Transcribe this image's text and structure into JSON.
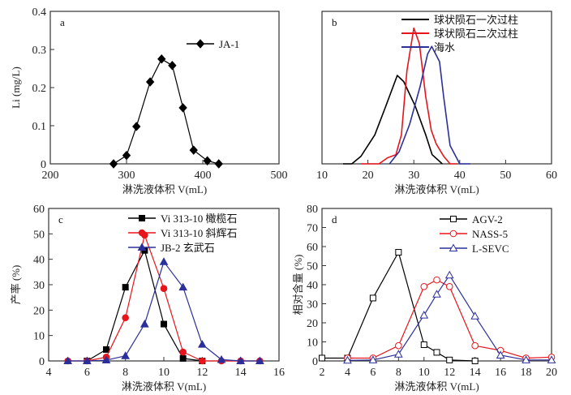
{
  "chart_data": [
    {
      "id": "a",
      "panel_label": "a",
      "type": "line",
      "xlabel": "淋洗液体积 V(mL)",
      "ylabel": "Li (mg/L)",
      "xlim": [
        200,
        500
      ],
      "ylim": [
        0,
        0.4
      ],
      "xticks": [
        200,
        300,
        400,
        500
      ],
      "yticks": [
        0,
        0.1,
        0.2,
        0.3,
        0.4
      ],
      "ytick_labels": [
        "0",
        "0.1",
        "0.2",
        "0.3",
        "0.4"
      ],
      "legend_position": "top-right",
      "series": [
        {
          "name": "JA-1",
          "color": "#000000",
          "marker": "diamond",
          "x": [
            283,
            300,
            313,
            331,
            346,
            360,
            374,
            388,
            406,
            421
          ],
          "y": [
            0,
            0.022,
            0.098,
            0.215,
            0.275,
            0.258,
            0.147,
            0.036,
            0.008,
            0
          ]
        }
      ]
    },
    {
      "id": "b",
      "panel_label": "b",
      "type": "line",
      "xlabel": "淋洗液体积 V(mL)",
      "ylabel": "",
      "xlim": [
        10,
        60
      ],
      "ylim": [
        0,
        1
      ],
      "xticks": [
        10,
        20,
        30,
        40,
        50,
        60
      ],
      "yticks": [],
      "legend_position": "top-right",
      "series": [
        {
          "name": "球状陨石一次过柱",
          "color": "#000000",
          "marker": "none",
          "x": [
            14.6,
            16.5,
            18.5,
            21.5,
            23.8,
            26.4,
            27.8,
            30.3,
            32.6,
            34.0,
            36.2
          ],
          "y": [
            0,
            0,
            0.05,
            0.19,
            0.37,
            0.58,
            0.54,
            0.38,
            0.19,
            0.06,
            0
          ]
        },
        {
          "name": "球状陨石二次过柱",
          "color": "#e8141c",
          "marker": "none",
          "x": [
            18.5,
            22.4,
            24.3,
            26.1,
            27.3,
            28.5,
            30.0,
            31.2,
            32.6,
            33.8,
            34.9,
            36.5,
            37.9,
            39.5
          ],
          "y": [
            0,
            0,
            0.04,
            0.06,
            0.19,
            0.61,
            0.89,
            0.79,
            0.44,
            0.22,
            0.13,
            0.05,
            0,
            0
          ]
        },
        {
          "name": "海水",
          "color": "#2b2f9a",
          "marker": "none",
          "x": [
            24.7,
            26.8,
            29.1,
            31.4,
            33.0,
            33.9,
            35.6,
            36.5,
            37.9,
            40.0,
            42.3
          ],
          "y": [
            0,
            0.08,
            0.26,
            0.51,
            0.72,
            0.77,
            0.67,
            0.44,
            0.12,
            0,
            0
          ]
        }
      ]
    },
    {
      "id": "c",
      "panel_label": "c",
      "type": "line",
      "xlabel": "淋洗液体积 V(mL)",
      "ylabel": "产率 (%)",
      "xlim": [
        4,
        16
      ],
      "ylim": [
        0,
        60
      ],
      "xticks": [
        4,
        6,
        8,
        10,
        12,
        14,
        16
      ],
      "yticks": [
        0,
        10,
        20,
        30,
        40,
        50,
        60
      ],
      "legend_position": "top-right",
      "series": [
        {
          "name": "Vi 313-10 橄榄石",
          "color": "#000000",
          "marker": "square-filled",
          "x": [
            6,
            7,
            8,
            9,
            10,
            11,
            12
          ],
          "y": [
            0,
            4.5,
            29,
            43.5,
            14.5,
            1,
            0
          ]
        },
        {
          "name": "Vi 313-10 斜辉石",
          "color": "#e8141c",
          "marker": "circle-filled",
          "x": [
            5,
            6,
            7,
            8,
            9,
            10,
            11,
            12,
            13,
            14,
            15
          ],
          "y": [
            0,
            0,
            1.5,
            17,
            49.5,
            28.5,
            3.5,
            0,
            0,
            0,
            0
          ]
        },
        {
          "name": "JB-2 玄武石",
          "color": "#2b2f9a",
          "marker": "triangle-filled",
          "x": [
            5,
            6,
            7,
            8,
            9,
            10,
            11,
            12,
            13,
            14,
            15
          ],
          "y": [
            0,
            0,
            0.3,
            2,
            14.5,
            39,
            29,
            6.5,
            0.5,
            0,
            0
          ]
        }
      ]
    },
    {
      "id": "d",
      "panel_label": "d",
      "type": "line",
      "xlabel": "淋洗液体积 V(mL)",
      "ylabel": "相对含量 (%)",
      "xlim": [
        2,
        20
      ],
      "ylim": [
        0,
        80
      ],
      "xticks": [
        2,
        4,
        6,
        8,
        10,
        12,
        14,
        16,
        18,
        20
      ],
      "yticks": [
        0,
        10,
        20,
        30,
        40,
        50,
        60,
        70,
        80
      ],
      "legend_position": "top-right",
      "series": [
        {
          "name": "AGV-2",
          "color": "#000000",
          "marker": "square-open",
          "x": [
            2,
            4,
            6,
            8,
            10,
            11,
            12,
            14
          ],
          "y": [
            1.5,
            1.5,
            33,
            57,
            8.5,
            4.5,
            0.5,
            0
          ]
        },
        {
          "name": "NASS-5",
          "color": "#e8141c",
          "marker": "circle-open",
          "x": [
            4,
            6,
            8,
            10,
            11,
            12,
            14,
            16,
            18,
            20
          ],
          "y": [
            1.5,
            1.5,
            8,
            39,
            42.5,
            39,
            8,
            5.5,
            1.5,
            2
          ]
        },
        {
          "name": "L-SEVC",
          "color": "#2b2f9a",
          "marker": "triangle-open",
          "x": [
            4,
            6,
            8,
            10,
            11,
            12,
            14,
            16,
            18,
            20
          ],
          "y": [
            0.3,
            0.5,
            3.5,
            24,
            35,
            45,
            23.5,
            3,
            0.5,
            0.5
          ]
        }
      ]
    }
  ]
}
